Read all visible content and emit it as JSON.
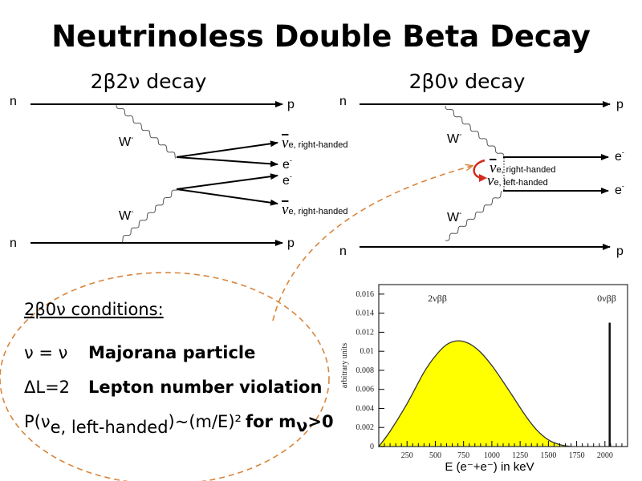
{
  "title": "Neutrinoless Double Beta Decay",
  "left_diagram": {
    "heading": "2β2ν decay",
    "n_top": "n",
    "p_top": "p",
    "n_bottom": "n",
    "p_bottom": "p",
    "w_top": "W",
    "w_bottom": "W",
    "w_sup": "-",
    "nu_symbol": "ν",
    "nu_sub": "e, right-handed",
    "electron": "e",
    "electron_sup": "-"
  },
  "right_diagram": {
    "heading": "2β0ν decay",
    "n_top": "n",
    "p_top": "p",
    "n_bottom": "n",
    "p_bottom": "p",
    "w_top": "W",
    "w_bottom": "W",
    "w_sup": "-",
    "nu_symbol": "ν",
    "nu_right_sub": "e, right-handed",
    "nu_left_sub": "e, left-handed",
    "electron": "e",
    "electron_sup": "-",
    "flip_arrow_color": "#d42a1c"
  },
  "conditions": {
    "heading": "2β0ν conditions:",
    "rows": [
      {
        "left": "ν = ν",
        "right": "Majorana particle"
      },
      {
        "left": "ΔL=2",
        "right": "Lepton number violation"
      },
      {
        "left_prefix": "P(ν",
        "left_sub": "e, left-handed",
        "left_suffix": ")~(m/E)²",
        "right": "for m",
        "right_sub": "ν",
        "right_suffix": ">0"
      }
    ],
    "outline_color": "#d9853b"
  },
  "chart_data": {
    "type": "area",
    "xlabel": "E (e⁻+e⁻) in keV",
    "ylabel": "arbitrary units",
    "xlim": [
      0,
      2200
    ],
    "ylim": [
      0,
      0.017
    ],
    "xticks": [
      "250",
      "500",
      "750",
      "1000",
      "1250",
      "1500",
      "1750",
      "2000"
    ],
    "yticks": [
      "0",
      "0.002",
      "0.004",
      "0.006",
      "0.008",
      "0.01",
      "0.012",
      "0.014",
      "0.016"
    ],
    "annotations": [
      "2νββ",
      "0νββ"
    ],
    "fill_color": "#ffff00",
    "series": [
      {
        "name": "2νββ",
        "x": [
          0,
          100,
          250,
          400,
          500,
          600,
          700,
          800,
          900,
          1000,
          1100,
          1200,
          1300,
          1400,
          1500,
          1600,
          1700
        ],
        "y": [
          0,
          0.0016,
          0.0045,
          0.0078,
          0.0095,
          0.0107,
          0.0111,
          0.0108,
          0.0099,
          0.0085,
          0.0068,
          0.005,
          0.0032,
          0.0017,
          0.0007,
          0.0002,
          0
        ]
      },
      {
        "name": "0νββ",
        "x": [
          2040
        ],
        "y": [
          0.013
        ]
      }
    ]
  }
}
